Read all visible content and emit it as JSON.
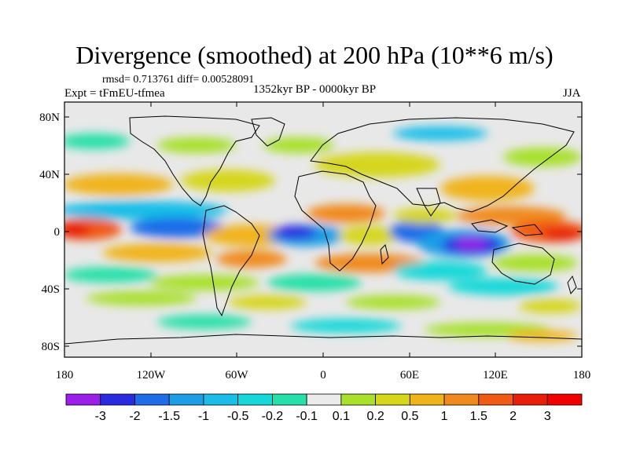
{
  "title": "Divergence (smoothed) at 200 hPa (10**6 m/s)",
  "stats": "rmsd= 0.713761 diff= 0.00528091",
  "experiment": "Expt = tFmEU-tfmea",
  "period": "1352kyr BP - 0000kyr BP",
  "season": "JJA",
  "axes": {
    "lon_ticks": [
      "180",
      "120W",
      "60W",
      "0",
      "60E",
      "120E",
      "180"
    ],
    "lat_ticks": [
      "80N",
      "40N",
      "0",
      "40S",
      "80S"
    ]
  },
  "colorbar": {
    "labels": [
      "-3",
      "-2",
      "-1.5",
      "-1",
      "-0.5",
      "-0.2",
      "-0.1",
      "0.1",
      "0.2",
      "0.5",
      "1",
      "1.5",
      "2",
      "3"
    ],
    "colors": [
      "#9b1fe8",
      "#2a2ae0",
      "#1f6ce8",
      "#1c9ee6",
      "#19bde8",
      "#16d8d8",
      "#25e0a8",
      "#ebebeb",
      "#a8e02a",
      "#d6d61a",
      "#f0b41a",
      "#f08a1e",
      "#f05a14",
      "#e81e0a",
      "#f00000"
    ]
  }
}
